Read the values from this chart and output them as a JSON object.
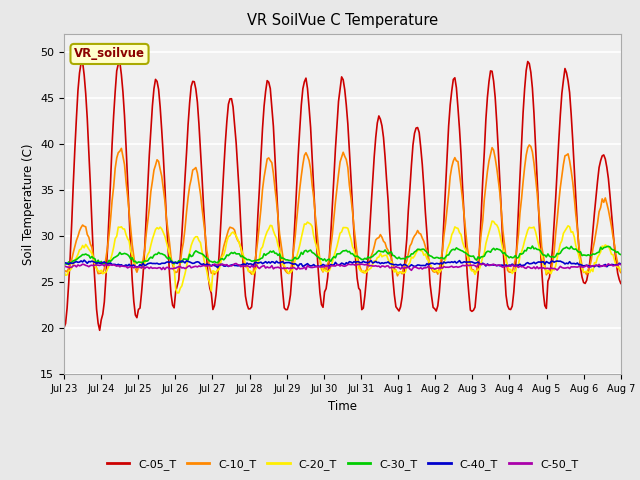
{
  "title": "VR SoilVue C Temperature",
  "xlabel": "Time",
  "ylabel": "Soil Temperature (C)",
  "ylim": [
    15,
    52
  ],
  "yticks": [
    15,
    20,
    25,
    30,
    35,
    40,
    45,
    50
  ],
  "legend_label": "VR_soilvue",
  "colors": {
    "C-05_T": "#cc0000",
    "C-10_T": "#ff8800",
    "C-20_T": "#ffee00",
    "C-30_T": "#00cc00",
    "C-40_T": "#0000cc",
    "C-50_T": "#aa00aa"
  },
  "bg_color": "#e8e8e8",
  "plot_bg_color": "#f0f0f0",
  "n_days": 15,
  "tick_labels": [
    "Jul 23",
    "Jul 24",
    "Jul 25",
    "Jul 26",
    "Jul 27",
    "Jul 28",
    "Jul 29",
    "Jul 30",
    "Jul 31",
    "Aug 1",
    "Aug 2",
    "Aug 3",
    "Aug 4",
    "Aug 5",
    "Aug 6",
    "Aug 7"
  ],
  "peaks_05": [
    49,
    49,
    47,
    47,
    45,
    47,
    47,
    47,
    43,
    42,
    47,
    48,
    49,
    48,
    39
  ],
  "troughs_05": [
    20,
    21,
    22,
    24,
    22,
    22,
    22,
    24,
    22,
    22,
    22,
    22,
    22,
    25,
    25
  ],
  "peaks_10": [
    31,
    39.5,
    38,
    37.5,
    31,
    38.5,
    39,
    39,
    30,
    30.5,
    38.5,
    39.5,
    40,
    39,
    34
  ],
  "troughs_10": [
    26,
    26,
    26.5,
    26,
    26,
    26,
    26,
    26.5,
    26,
    26,
    26,
    26,
    26,
    26,
    26
  ],
  "peaks_20": [
    29,
    31,
    31,
    30,
    30.5,
    31,
    31.5,
    31,
    28,
    28.5,
    31,
    31.5,
    31,
    31,
    29
  ],
  "troughs_20": [
    26,
    26,
    26.5,
    24,
    26,
    26,
    26,
    26,
    26,
    26,
    26,
    26,
    26,
    26,
    26
  ]
}
